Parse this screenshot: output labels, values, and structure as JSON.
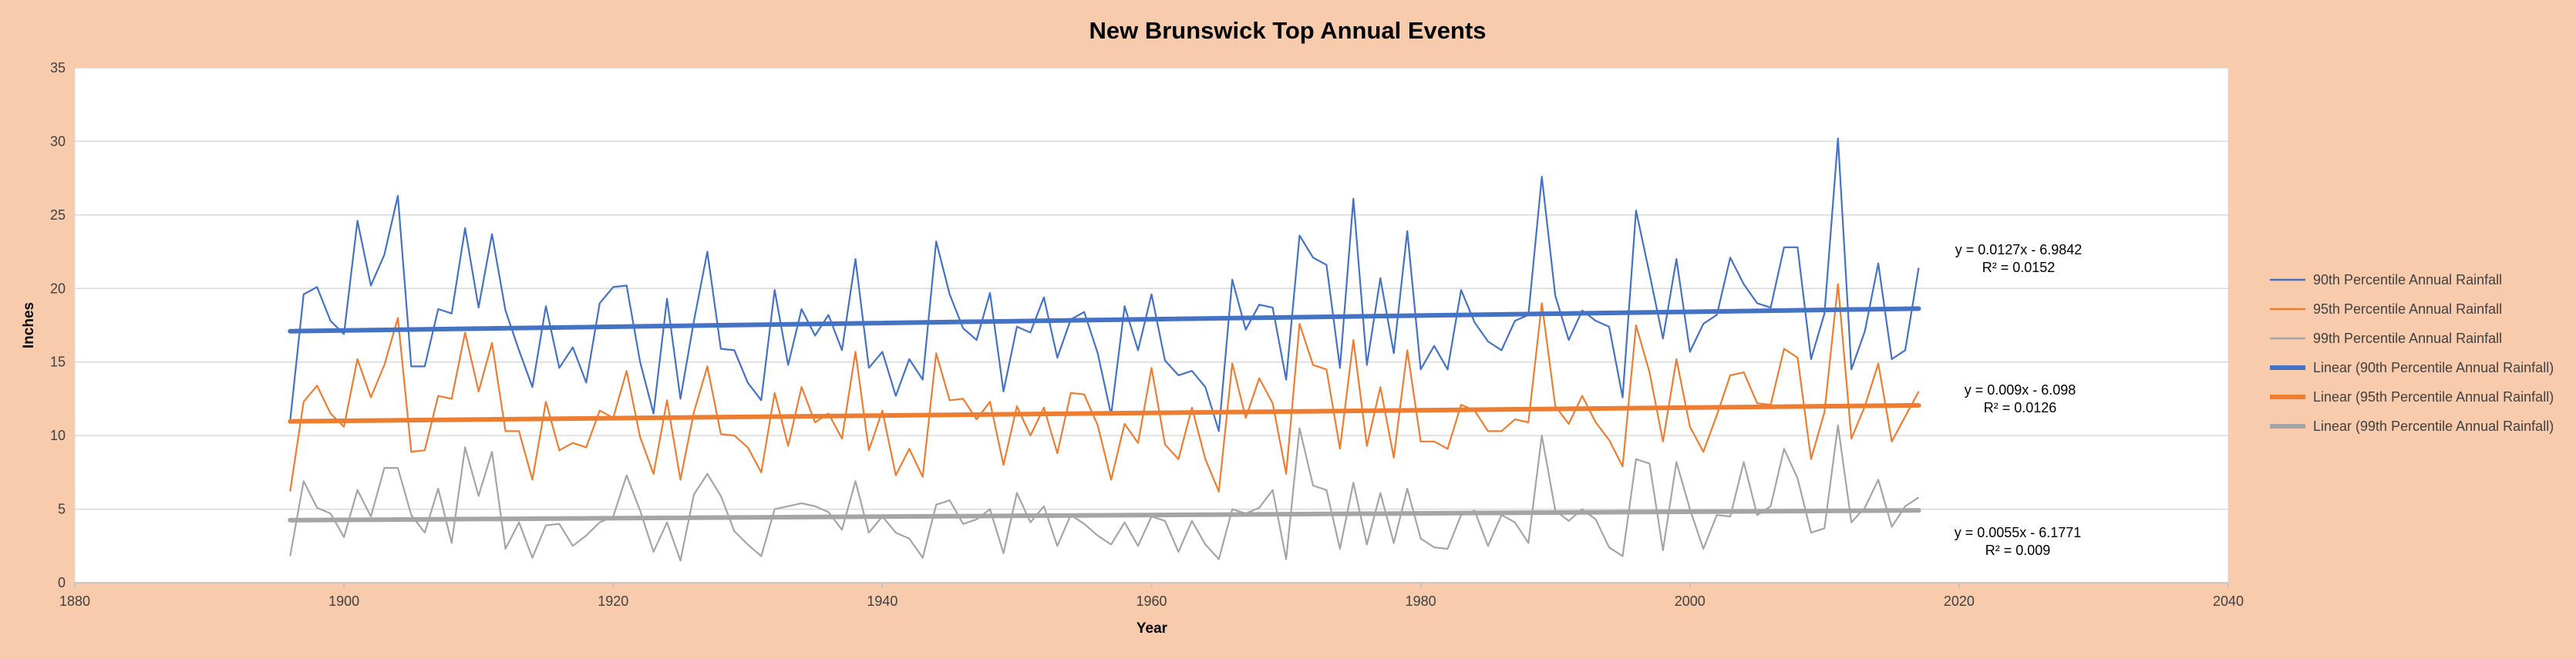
{
  "chart_data": {
    "type": "line",
    "title": "New Brunswick Top Annual Events",
    "xlabel": "Year",
    "ylabel": "Inches",
    "xlim": [
      1880,
      2040
    ],
    "ylim": [
      0,
      35
    ],
    "xticks": [
      1880,
      1900,
      1920,
      1940,
      1960,
      1980,
      2000,
      2020,
      2040
    ],
    "yticks": [
      0,
      5,
      10,
      15,
      20,
      25,
      30,
      35
    ],
    "grid": "horizontal",
    "legend_position": "right",
    "x": [
      1896,
      1897,
      1898,
      1899,
      1900,
      1901,
      1902,
      1903,
      1904,
      1905,
      1906,
      1907,
      1908,
      1909,
      1910,
      1911,
      1912,
      1913,
      1914,
      1915,
      1916,
      1917,
      1918,
      1919,
      1920,
      1921,
      1922,
      1923,
      1924,
      1925,
      1926,
      1927,
      1928,
      1929,
      1930,
      1931,
      1932,
      1933,
      1934,
      1935,
      1936,
      1937,
      1938,
      1939,
      1940,
      1941,
      1942,
      1943,
      1944,
      1945,
      1946,
      1947,
      1948,
      1949,
      1950,
      1951,
      1952,
      1953,
      1954,
      1955,
      1956,
      1957,
      1958,
      1959,
      1960,
      1961,
      1962,
      1963,
      1964,
      1965,
      1966,
      1967,
      1968,
      1969,
      1970,
      1971,
      1972,
      1973,
      1974,
      1975,
      1976,
      1977,
      1978,
      1979,
      1980,
      1981,
      1982,
      1983,
      1984,
      1985,
      1986,
      1987,
      1988,
      1989,
      1990,
      1991,
      1992,
      1993,
      1994,
      1995,
      1996,
      1997,
      1998,
      1999,
      2000,
      2001,
      2002,
      2003,
      2004,
      2005,
      2006,
      2007,
      2008,
      2009,
      2010,
      2011,
      2012,
      2013,
      2014,
      2015,
      2016,
      2017
    ],
    "series": [
      {
        "name": "90th Percentile Annual Rainfall",
        "color": "#4472C4",
        "values": [
          11.0,
          19.6,
          20.1,
          17.8,
          16.9,
          24.6,
          20.2,
          22.3,
          26.3,
          14.7,
          14.7,
          18.6,
          18.3,
          24.1,
          18.7,
          23.7,
          18.5,
          15.8,
          13.3,
          18.8,
          14.6,
          16.0,
          13.6,
          19.0,
          20.1,
          20.2,
          15.0,
          11.5,
          19.3,
          12.5,
          17.8,
          22.5,
          15.9,
          15.8,
          13.6,
          12.4,
          19.9,
          14.8,
          18.6,
          16.8,
          18.2,
          15.8,
          22.0,
          14.6,
          15.7,
          12.7,
          15.2,
          13.8,
          23.2,
          19.6,
          17.3,
          16.5,
          19.7,
          13.0,
          17.4,
          17.0,
          19.4,
          15.3,
          17.9,
          18.4,
          15.6,
          11.4,
          18.8,
          15.8,
          19.6,
          15.1,
          14.1,
          14.4,
          13.3,
          10.3,
          20.6,
          17.2,
          18.9,
          18.7,
          13.8,
          23.6,
          22.1,
          21.6,
          14.6,
          26.1,
          14.8,
          20.7,
          15.6,
          23.9,
          14.5,
          16.1,
          14.5,
          19.9,
          17.7,
          16.4,
          15.8,
          17.8,
          18.2,
          27.6,
          19.5,
          16.5,
          18.5,
          17.8,
          17.4,
          12.6,
          25.3,
          21.0,
          16.6,
          22.0,
          15.7,
          17.6,
          18.2,
          22.1,
          20.3,
          19.0,
          18.7,
          22.8,
          22.8,
          15.2,
          18.3,
          30.2,
          14.5,
          17.1,
          21.7,
          15.2,
          15.8,
          21.4
        ]
      },
      {
        "name": "95th Percentile Annual Rainfall",
        "color": "#ED7D31",
        "values": [
          6.2,
          12.3,
          13.4,
          11.5,
          10.6,
          15.2,
          12.6,
          14.8,
          18.0,
          8.9,
          9.0,
          12.7,
          12.5,
          17.0,
          13.0,
          16.3,
          10.3,
          10.3,
          7.0,
          12.3,
          9.0,
          9.5,
          9.2,
          11.7,
          11.2,
          14.4,
          9.9,
          7.4,
          12.4,
          7.0,
          11.6,
          14.7,
          10.1,
          10.0,
          9.2,
          7.5,
          12.9,
          9.3,
          13.3,
          10.9,
          11.5,
          9.8,
          15.7,
          9.0,
          11.7,
          7.3,
          9.1,
          7.2,
          15.6,
          12.4,
          12.5,
          11.1,
          12.3,
          8.0,
          12.0,
          10.0,
          11.9,
          8.8,
          12.9,
          12.8,
          10.7,
          7.0,
          10.8,
          9.5,
          14.6,
          9.4,
          8.4,
          11.9,
          8.4,
          6.2,
          14.9,
          11.2,
          13.9,
          12.2,
          7.4,
          17.6,
          14.8,
          14.5,
          9.1,
          16.5,
          9.3,
          13.3,
          8.5,
          15.8,
          9.6,
          9.6,
          9.1,
          12.1,
          11.7,
          10.3,
          10.3,
          11.1,
          10.9,
          19.0,
          12.0,
          10.8,
          12.7,
          10.9,
          9.7,
          7.9,
          17.5,
          14.3,
          9.6,
          15.2,
          10.6,
          8.9,
          11.4,
          14.1,
          14.3,
          12.2,
          12.1,
          15.9,
          15.3,
          8.4,
          11.6,
          20.3,
          9.8,
          12.0,
          14.9,
          9.6,
          11.3,
          13.0
        ]
      },
      {
        "name": "99th Percentile Annual Rainfall",
        "color": "#A5A5A5",
        "values": [
          1.8,
          6.9,
          5.1,
          4.7,
          3.1,
          6.3,
          4.5,
          7.8,
          7.8,
          4.6,
          3.4,
          6.4,
          2.7,
          9.2,
          5.9,
          8.9,
          2.3,
          4.1,
          1.7,
          3.9,
          4.0,
          2.5,
          3.2,
          4.1,
          4.5,
          7.3,
          4.9,
          2.1,
          4.1,
          1.5,
          6.0,
          7.4,
          5.9,
          3.5,
          2.6,
          1.8,
          5.0,
          5.2,
          5.4,
          5.2,
          4.8,
          3.6,
          6.9,
          3.4,
          4.5,
          3.4,
          3.0,
          1.7,
          5.3,
          5.6,
          4.0,
          4.3,
          5.0,
          2.0,
          6.1,
          4.1,
          5.2,
          2.5,
          4.6,
          4.0,
          3.2,
          2.6,
          4.1,
          2.5,
          4.5,
          4.2,
          2.1,
          4.2,
          2.6,
          1.6,
          5.0,
          4.7,
          5.1,
          6.3,
          1.6,
          10.5,
          6.6,
          6.3,
          2.3,
          6.8,
          2.6,
          6.1,
          2.7,
          6.4,
          3.0,
          2.4,
          2.3,
          4.6,
          4.9,
          2.5,
          4.6,
          4.1,
          2.7,
          10.0,
          4.9,
          4.2,
          5.0,
          4.3,
          2.4,
          1.8,
          8.4,
          8.1,
          2.2,
          8.2,
          5.0,
          2.3,
          4.6,
          4.5,
          8.2,
          4.6,
          5.2,
          9.1,
          7.1,
          3.4,
          3.7,
          10.7,
          4.1,
          5.1,
          7.0,
          3.8,
          5.2,
          5.8
        ]
      }
    ],
    "trendlines": [
      {
        "name": "Linear (90th Percentile Annual Rainfall)",
        "color": "#4472C4",
        "slope": 0.0127,
        "intercept": -6.9842,
        "equation": "y = 0.0127x - 6.9842",
        "r2": "R² = 0.0152"
      },
      {
        "name": "Linear (95th Percentile Annual Rainfall)",
        "color": "#ED7D31",
        "slope": 0.009,
        "intercept": -6.098,
        "equation": "y = 0.009x - 6.098",
        "r2": "R² = 0.0126"
      },
      {
        "name": "Linear (99th Percentile Annual Rainfall)",
        "color": "#A5A5A5",
        "slope": 0.0055,
        "intercept": -6.1771,
        "equation": "y = 0.0055x - 6.1771",
        "r2": "R² = 0.009"
      }
    ]
  }
}
